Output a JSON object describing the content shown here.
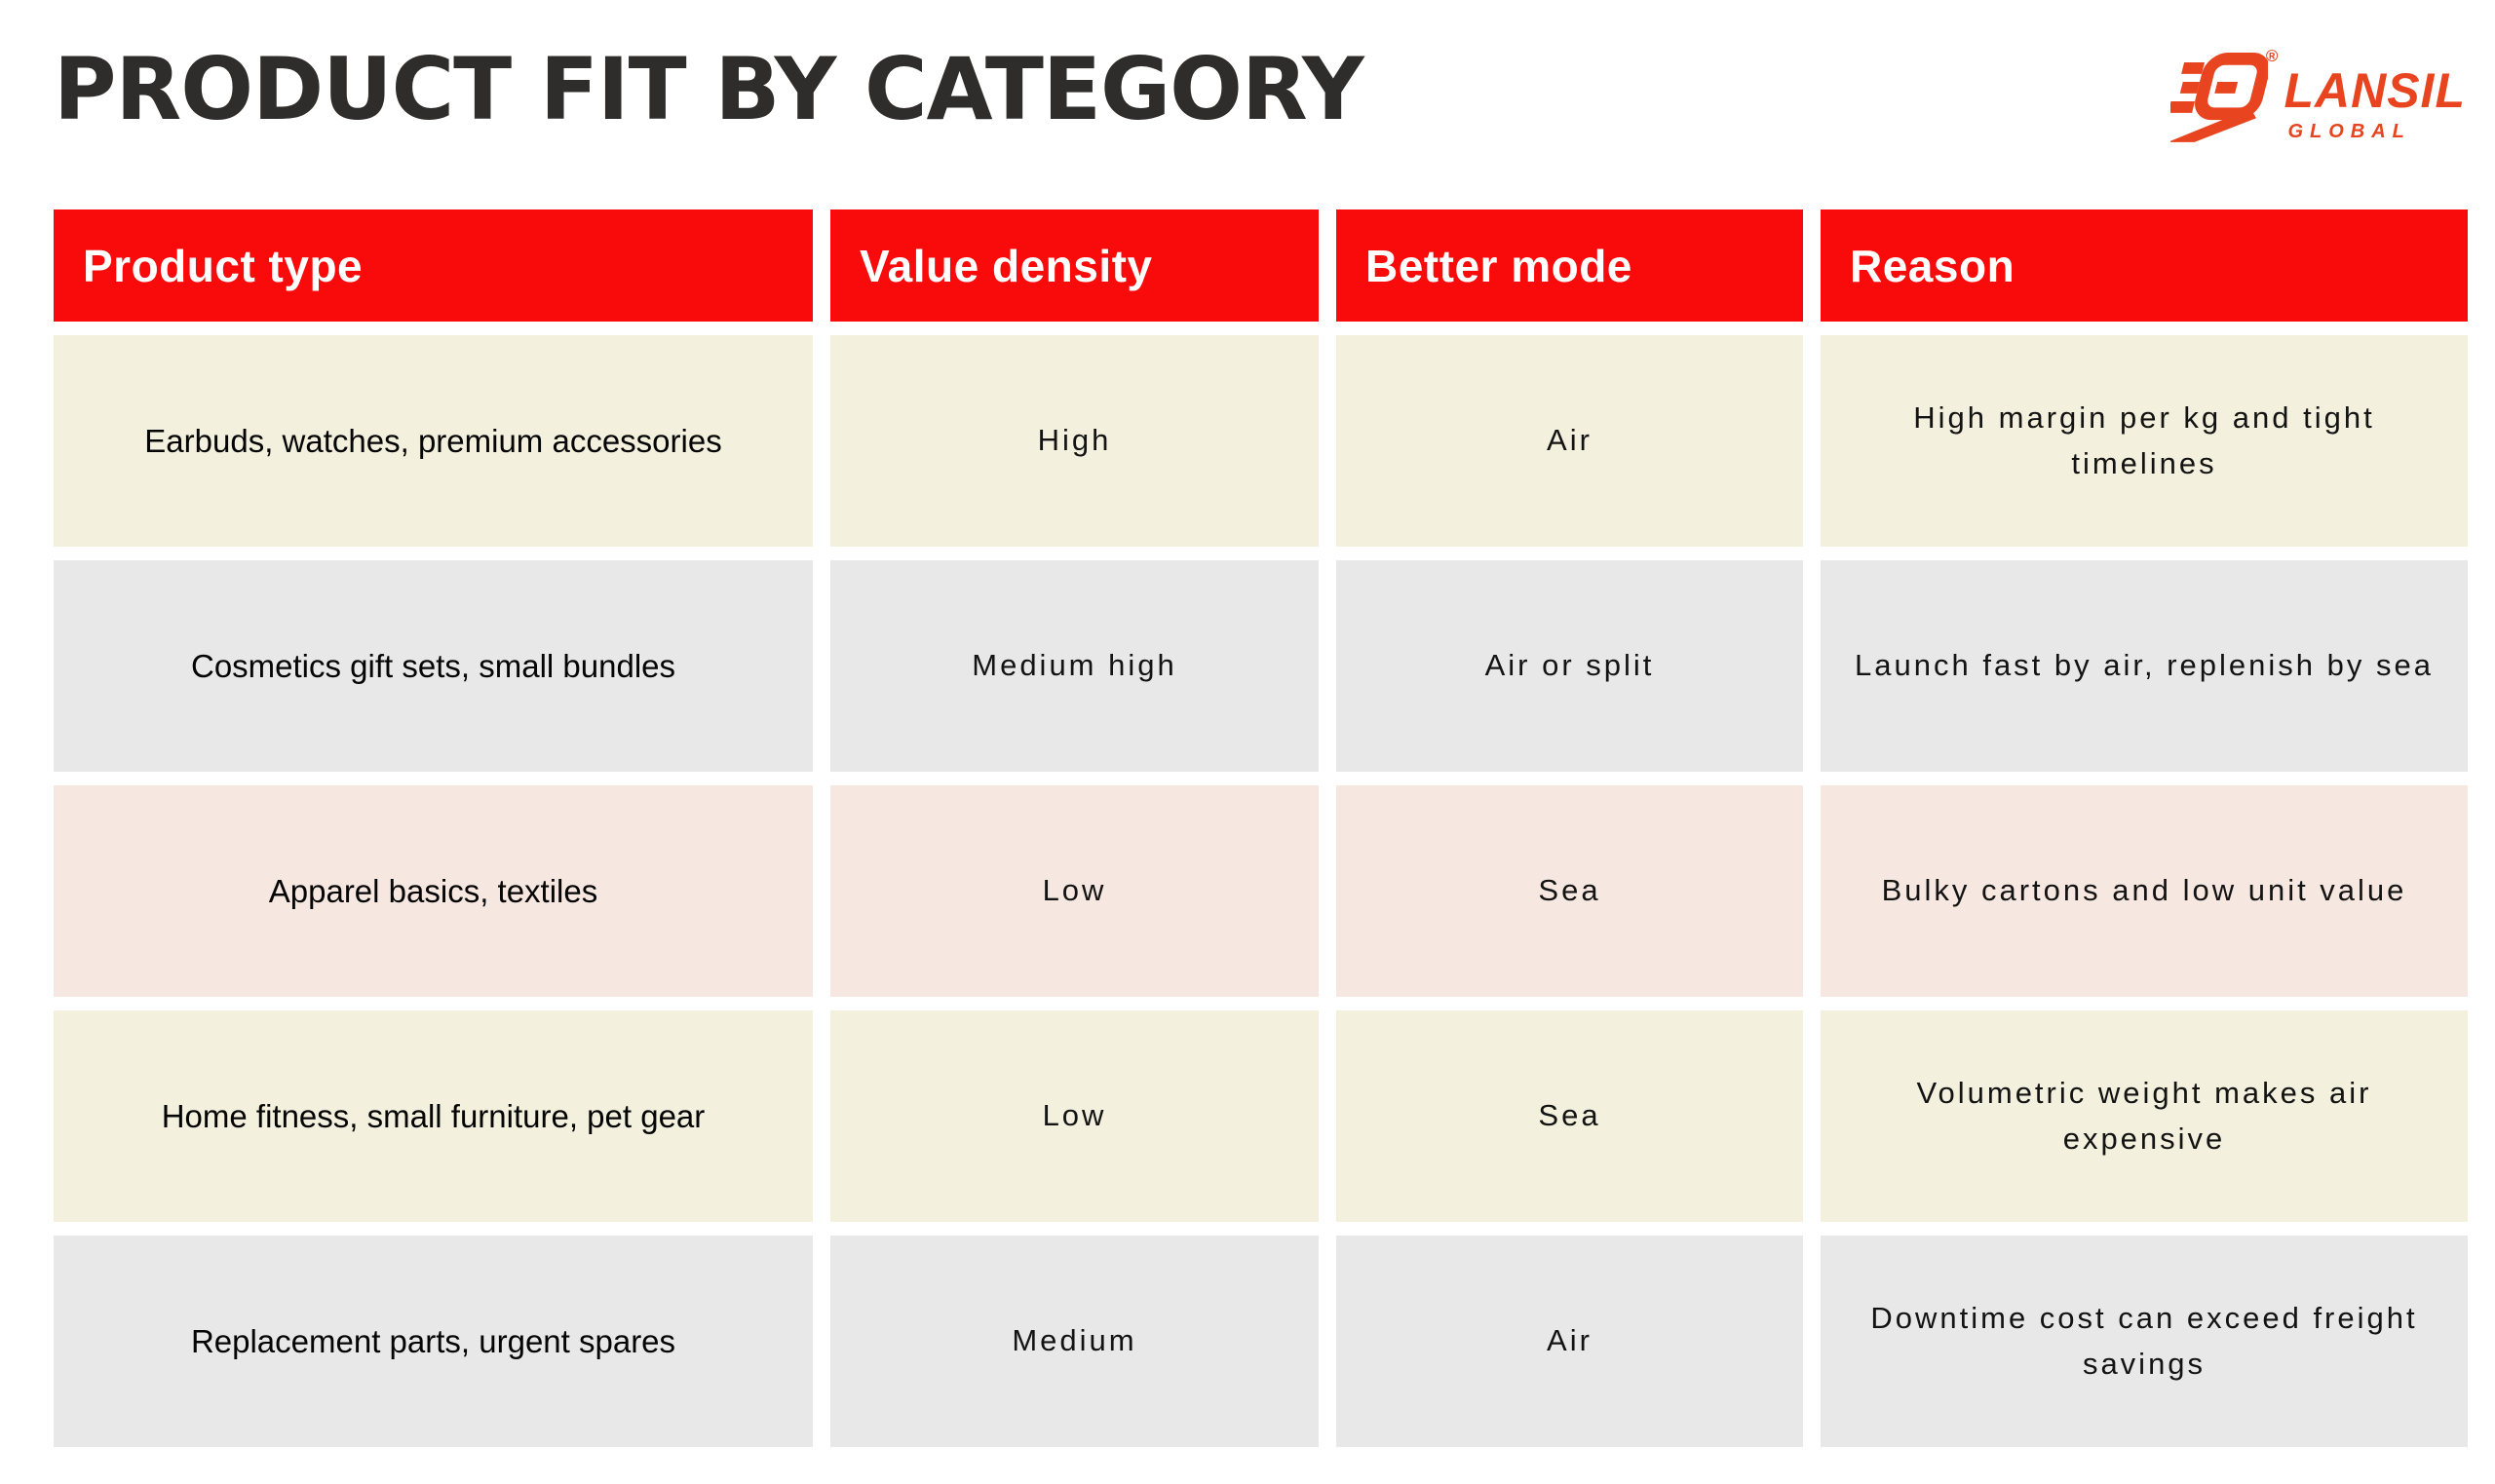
{
  "page": {
    "title": "PRODUCT FIT BY CATEGORY",
    "title_color": "#2e2d2c",
    "background": "#ffffff"
  },
  "logo": {
    "name": "LANSIL",
    "subname": "GLOBAL",
    "registered": "®",
    "color": "#e8441f"
  },
  "table": {
    "header_bg": "#f90b0b",
    "header_text_color": "#ffffff",
    "columns": [
      "Product type",
      "Value density",
      "Better mode",
      "Reason"
    ],
    "rows": [
      {
        "bg": "#f3f0dd",
        "cells": [
          "Earbuds, watches, premium accessories",
          "High",
          "Air",
          "High margin per kg and tight\ntimelines"
        ]
      },
      {
        "bg": "#e9e8e8",
        "cells": [
          "Cosmetics gift sets, small bundles",
          "Medium high",
          "Air or split",
          "Launch fast by air, replenish by sea"
        ]
      },
      {
        "bg": "#f6e8e1",
        "cells": [
          "Apparel basics, textiles",
          "Low",
          "Sea",
          "Bulky cartons and low unit value"
        ]
      },
      {
        "bg": "#f3f0dd",
        "cells": [
          "Home fitness, small furniture, pet gear",
          "Low",
          "Sea",
          "Volumetric weight makes air\nexpensive"
        ]
      },
      {
        "bg": "#e9e8e8",
        "cells": [
          "Replacement parts, urgent spares",
          "Medium",
          "Air",
          "Downtime cost can exceed freight\nsavings"
        ]
      }
    ]
  }
}
